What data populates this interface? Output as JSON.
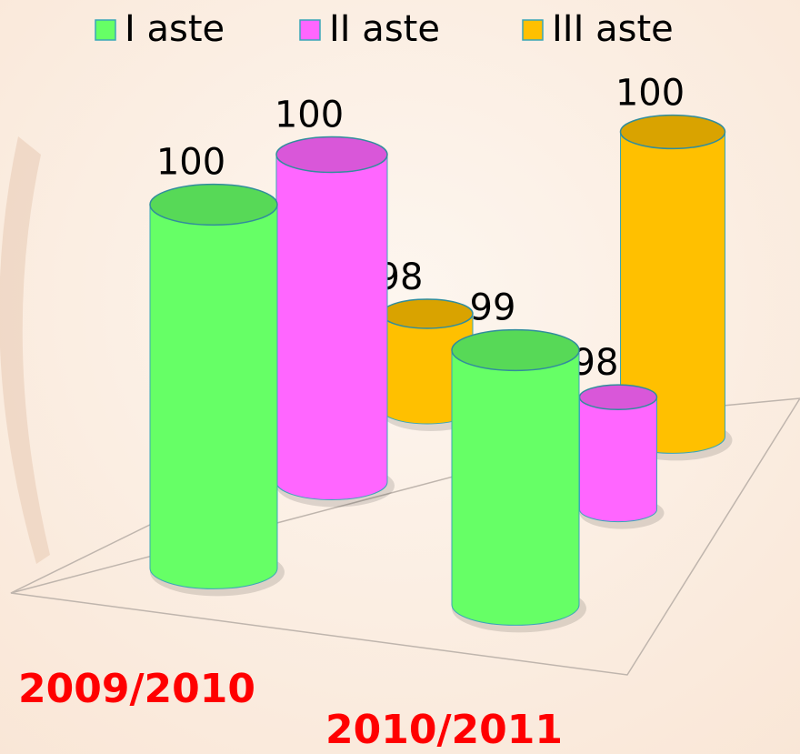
{
  "chart_data": {
    "type": "bar3d",
    "categories": [
      "2009/2010",
      "2010/2011"
    ],
    "series": [
      {
        "name": "I aste",
        "color": "#66ff66",
        "values": [
          100,
          99
        ]
      },
      {
        "name": "II aste",
        "color": "#ff66ff",
        "values": [
          100,
          98
        ]
      },
      {
        "name": "III aste",
        "color": "#ffc000",
        "values": [
          98,
          100
        ]
      }
    ],
    "ylim": [
      97,
      100
    ]
  }
}
